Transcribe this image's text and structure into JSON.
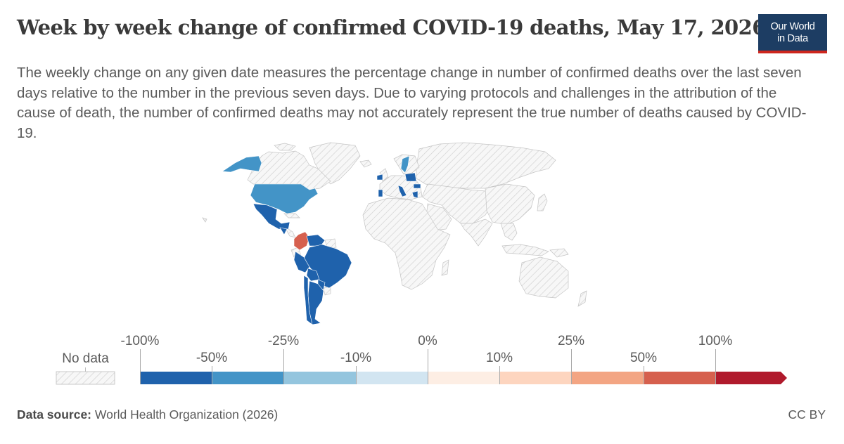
{
  "header": {
    "title": "Week by week change of confirmed COVID-19 deaths, May 17, 2026",
    "subtitle": "The weekly change on any given date measures the percentage change in number of confirmed deaths over the last seven days relative to the number in the previous seven days. Due to varying protocols and challenges in the attribution of the cause of death, the number of confirmed deaths may not accurately represent the true number of deaths caused by COVID-19."
  },
  "logo": {
    "line1": "Our World",
    "line2": "in Data",
    "bg": "#1d3d63",
    "accent": "#ce261e"
  },
  "footer": {
    "source_label": "Data source:",
    "source_text": "World Health Organization (2026)",
    "license": "CC BY"
  },
  "legend": {
    "no_data_label": "No data",
    "bins": [
      {
        "color": "#1f62ac"
      },
      {
        "color": "#4394c7"
      },
      {
        "color": "#94c5de"
      },
      {
        "color": "#d2e5f1"
      },
      {
        "color": "#fdeee4"
      },
      {
        "color": "#fdd5bf"
      },
      {
        "color": "#f3a583"
      },
      {
        "color": "#d6604e"
      },
      {
        "color": "#b01a2c"
      }
    ],
    "tick_labels": [
      "-100%",
      "-50%",
      "-25%",
      "-10%",
      "0%",
      "10%",
      "25%",
      "50%",
      "100%"
    ]
  },
  "map_data": {
    "no_data_pattern": "hatched-gray",
    "regions": [
      {
        "name": "Alaska",
        "bin": 1
      },
      {
        "name": "United States",
        "bin": 1
      },
      {
        "name": "Mexico",
        "bin": 0
      },
      {
        "name": "Guatemala",
        "bin": 0
      },
      {
        "name": "Honduras",
        "bin": 0
      },
      {
        "name": "Colombia",
        "bin": 7
      },
      {
        "name": "Venezuela",
        "bin": 0
      },
      {
        "name": "Brazil",
        "bin": 0
      },
      {
        "name": "Peru",
        "bin": 0
      },
      {
        "name": "Bolivia",
        "bin": 0
      },
      {
        "name": "Paraguay",
        "bin": 0
      },
      {
        "name": "Argentina",
        "bin": 0
      },
      {
        "name": "Chile",
        "bin": 0
      },
      {
        "name": "Sweden",
        "bin": 1
      },
      {
        "name": "Poland",
        "bin": 0
      },
      {
        "name": "Ireland",
        "bin": 0
      },
      {
        "name": "Portugal",
        "bin": 0
      },
      {
        "name": "Italy",
        "bin": 0
      },
      {
        "name": "Greece",
        "bin": 0
      },
      {
        "name": "Romania",
        "bin": 0
      }
    ]
  }
}
